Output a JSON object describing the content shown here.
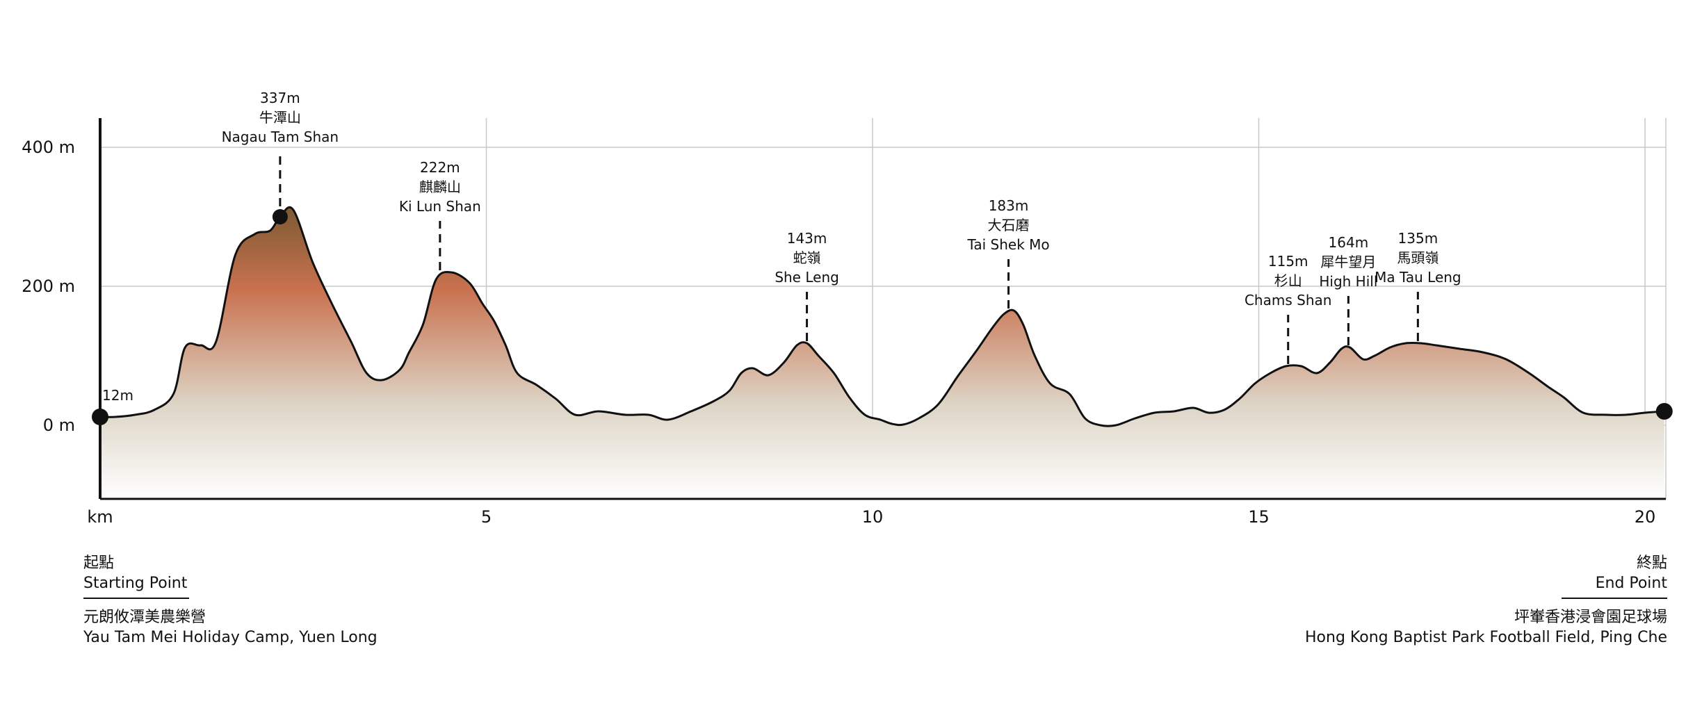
{
  "chart_data": {
    "type": "area",
    "title": "",
    "xlabel": "km",
    "ylabel": "",
    "x_unit": "km",
    "xlim": [
      0,
      20.3
    ],
    "ylim": [
      -100,
      450
    ],
    "x_ticks": [
      {
        "value": 0,
        "label": "km"
      },
      {
        "value": 5,
        "label": "5"
      },
      {
        "value": 10,
        "label": "10"
      },
      {
        "value": 15,
        "label": "15"
      },
      {
        "value": 20,
        "label": "20"
      }
    ],
    "y_ticks": [
      {
        "value": 0,
        "label": "0 m"
      },
      {
        "value": 200,
        "label": "200 m"
      },
      {
        "value": 400,
        "label": "400 m"
      }
    ],
    "grid": true,
    "gradient_colors": [
      "#7c5a33",
      "#c9714f",
      "#ddd5c6",
      "#ffffff"
    ],
    "series": [
      {
        "x": [
          0,
          0.2,
          0.45,
          0.7,
          0.95,
          1.1,
          1.3,
          1.5,
          1.75,
          2.0,
          2.2,
          2.33,
          2.5,
          2.75,
          3.0,
          3.25,
          3.45,
          3.65,
          3.88,
          4.0,
          4.18,
          4.35,
          4.55,
          4.78,
          4.95,
          5.1,
          5.25,
          5.4,
          5.65,
          5.9,
          6.15,
          6.45,
          6.8,
          7.1,
          7.35,
          7.65,
          7.95,
          8.15,
          8.3,
          8.45,
          8.65,
          8.85,
          9.02,
          9.15,
          9.3,
          9.5,
          9.7,
          9.9,
          10.1,
          10.25,
          10.4,
          10.6,
          10.85,
          11.1,
          11.35,
          11.55,
          11.7,
          11.83,
          11.95,
          12.1,
          12.3,
          12.55,
          12.75,
          12.95,
          13.15,
          13.4,
          13.65,
          13.9,
          14.15,
          14.35,
          14.55,
          14.75,
          14.95,
          15.15,
          15.35,
          15.55,
          15.75,
          15.92,
          16.07,
          16.18,
          16.35,
          16.5,
          16.7,
          16.9,
          17.1,
          17.3,
          17.6,
          17.9,
          18.2,
          18.5,
          18.75,
          18.95,
          19.2,
          19.5,
          19.75,
          20.0,
          20.25
        ],
        "y": [
          12,
          12,
          15,
          22,
          45,
          112,
          115,
          120,
          245,
          275,
          280,
          300,
          310,
          235,
          175,
          120,
          75,
          65,
          80,
          105,
          145,
          210,
          220,
          205,
          175,
          150,
          115,
          75,
          58,
          38,
          15,
          20,
          15,
          15,
          8,
          20,
          35,
          50,
          75,
          82,
          72,
          90,
          115,
          118,
          100,
          75,
          40,
          15,
          8,
          2,
          1,
          10,
          30,
          70,
          108,
          140,
          160,
          165,
          145,
          100,
          60,
          45,
          10,
          0,
          0,
          10,
          18,
          20,
          25,
          18,
          22,
          38,
          60,
          75,
          85,
          85,
          75,
          90,
          110,
          112,
          95,
          100,
          112,
          118,
          118,
          115,
          110,
          105,
          95,
          75,
          55,
          40,
          18,
          15,
          15,
          18,
          20
        ]
      }
    ],
    "peaks": [
      {
        "x": 2.33,
        "y": 300,
        "height": "337m",
        "name_zh": "牛潭山",
        "name_en": "Nagau Tam Shan",
        "dot": true
      },
      {
        "x": 4.4,
        "y": 220,
        "height": "222m",
        "name_zh": "麒麟山",
        "name_en": "Ki Lun Shan"
      },
      {
        "x": 9.15,
        "y": 118,
        "height": "143m",
        "name_zh": "蛇嶺",
        "name_en": "She Leng"
      },
      {
        "x": 11.76,
        "y": 165,
        "height": "183m",
        "name_zh": "大石磨",
        "name_en": "Tai Shek Mo"
      },
      {
        "x": 15.38,
        "y": 85,
        "height": "115m",
        "name_zh": "杉山",
        "name_en": "Chams Shan"
      },
      {
        "x": 16.16,
        "y": 112,
        "height": "164m",
        "name_zh": "犀牛望月",
        "name_en": "High Hill"
      },
      {
        "x": 17.06,
        "y": 118,
        "height": "135m",
        "name_zh": "馬頭嶺",
        "name_en": "Ma Tau Leng"
      }
    ],
    "start_point": {
      "x": 0,
      "y": 12,
      "label": "12m"
    },
    "end_point": {
      "x": 20.25,
      "y": 20
    }
  },
  "start_info": {
    "heading_zh": "起點",
    "heading_en": "Starting Point",
    "place_zh": "元朗攸潭美農樂營",
    "place_en": "Yau Tam Mei Holiday Camp, Yuen Long"
  },
  "end_info": {
    "heading_zh": "終點",
    "heading_en": "End Point",
    "place_zh": "坪輋香港浸會園足球場",
    "place_en": "Hong Kong Baptist Park Football Field, Ping Che"
  }
}
